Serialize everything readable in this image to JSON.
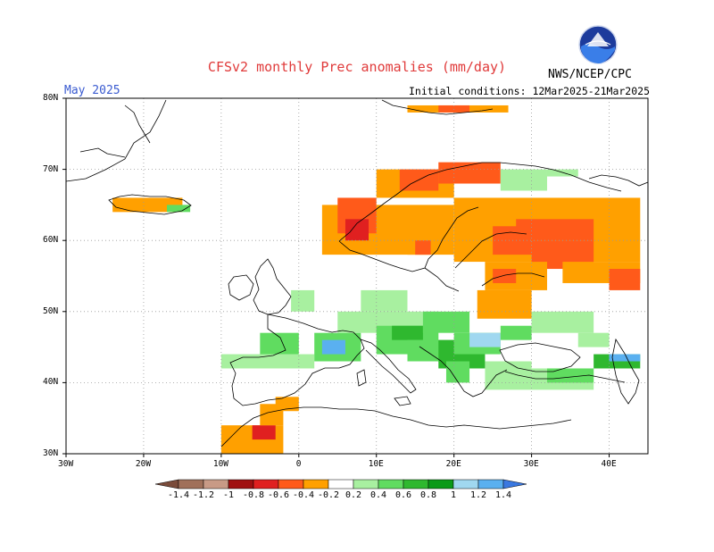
{
  "title": "CFSv2 monthly Prec anomalies (mm/day)",
  "month_label": "May 2025",
  "initial_conditions": "Initial conditions: 12Mar2025-21Mar2025",
  "agency": "NWS/NCEP/CPC",
  "logo_text": "NOAA",
  "map": {
    "lon_range": [
      -30,
      45
    ],
    "lat_range": [
      30,
      80
    ],
    "lat_ticks": [
      "30N",
      "40N",
      "50N",
      "60N",
      "70N",
      "80N"
    ],
    "lon_ticks": [
      "30W",
      "20W",
      "10W",
      "0",
      "10E",
      "20E",
      "30E",
      "40E"
    ],
    "grid": true
  },
  "colorbar": {
    "labels": [
      "-1.4",
      "-1.2",
      "-1",
      "-0.8",
      "-0.6",
      "-0.4",
      "-0.2",
      "0.2",
      "0.4",
      "0.6",
      "0.8",
      "1",
      "1.2",
      "1.4"
    ],
    "colors": [
      "#7a4b3a",
      "#a0705a",
      "#c89a86",
      "#a01010",
      "#e02020",
      "#ff5a1a",
      "#ffa000",
      "#ffffff",
      "#a8f0a0",
      "#60dc60",
      "#2fb82f",
      "#0a9a18",
      "#a0d8f0",
      "#5ab0f0",
      "#3a78e0"
    ]
  },
  "anomalies": {
    "colors": {
      "dry1": "#ffa000",
      "dry2": "#ff5a1a",
      "dry3": "#e02020",
      "dry4": "#a01010",
      "wet1": "#a8f0a0",
      "wet2": "#60dc60",
      "wet3": "#2fb82f",
      "wet4": "#0a9a18",
      "wet5": "#a0d8f0",
      "wet6": "#5ab0f0"
    }
  }
}
